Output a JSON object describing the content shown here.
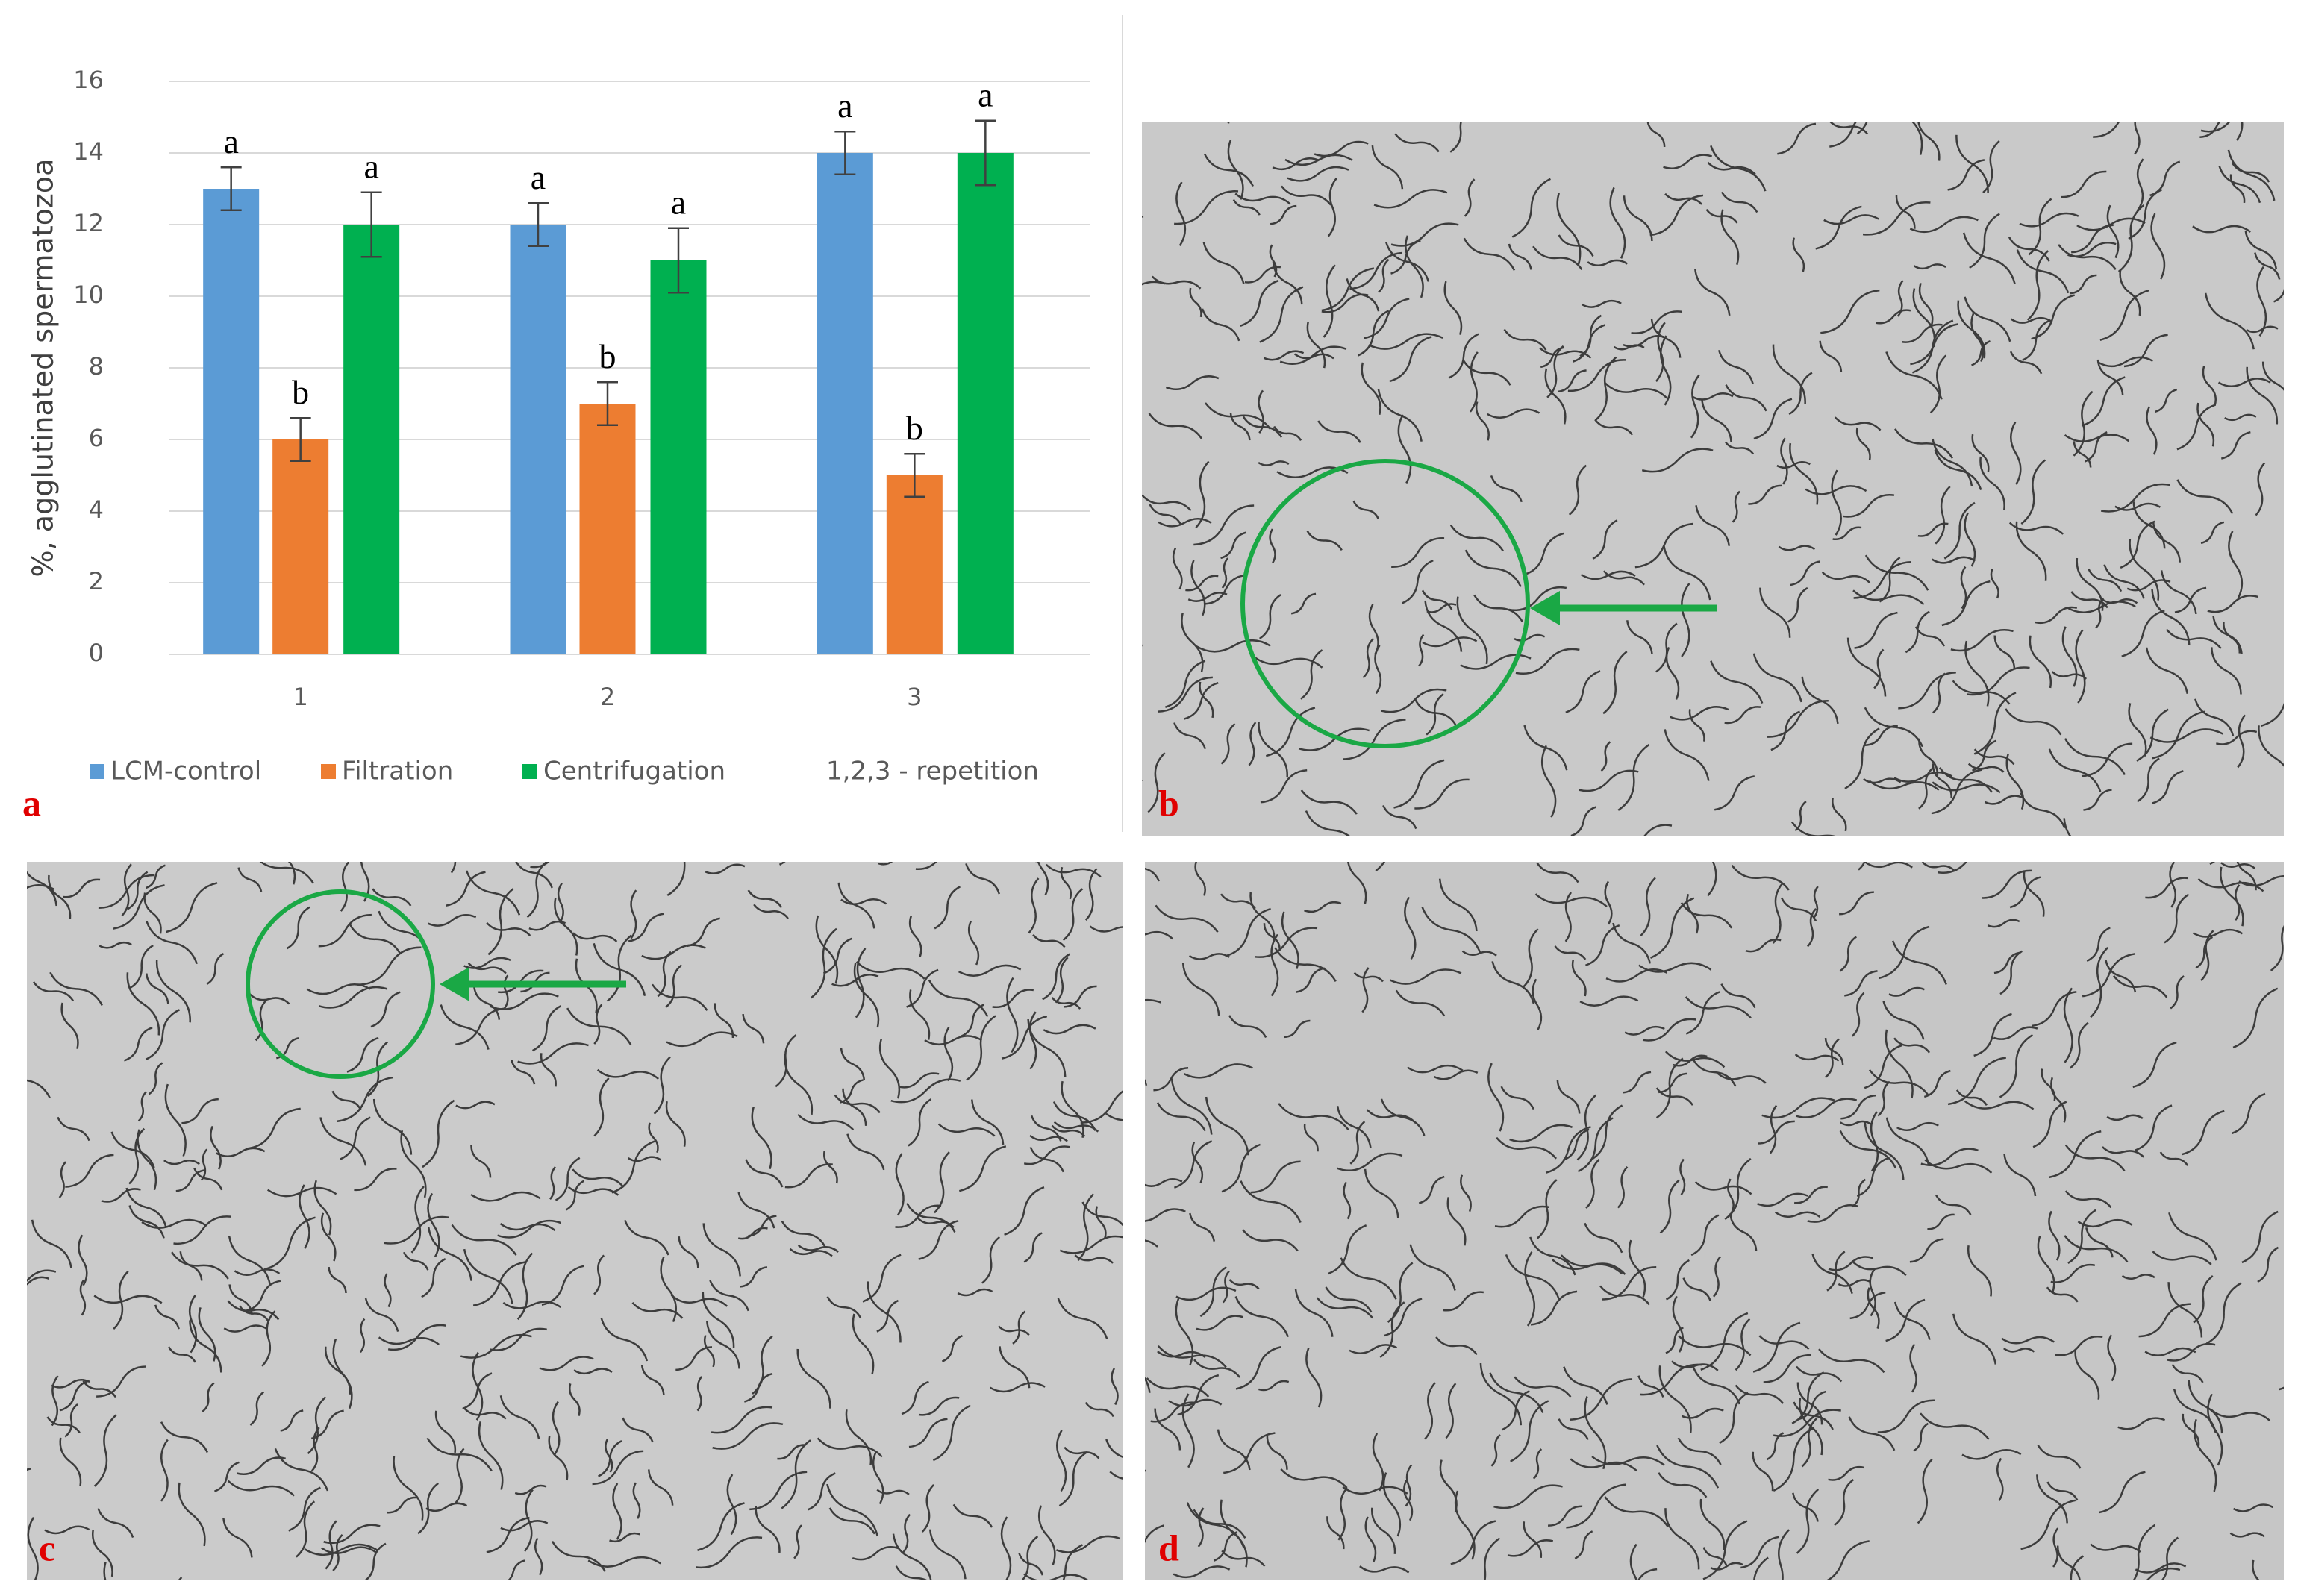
{
  "chart_data": {
    "type": "bar",
    "y_label": "%, agglutinated spermatozoa",
    "categories": [
      "1",
      "2",
      "3"
    ],
    "series": [
      {
        "name": "LCM-control",
        "color": "#5b9bd5",
        "values": [
          13,
          12,
          14
        ],
        "errors": [
          0.6,
          0.6,
          0.6
        ],
        "letters": [
          "a",
          "a",
          "a"
        ]
      },
      {
        "name": "Filtration",
        "color": "#ed7d31",
        "values": [
          6,
          7,
          5
        ],
        "errors": [
          0.6,
          0.6,
          0.6
        ],
        "letters": [
          "b",
          "b",
          "b"
        ]
      },
      {
        "name": "Centrifugation",
        "color": "#00b050",
        "values": [
          12,
          11,
          14
        ],
        "errors": [
          0.9,
          0.9,
          0.9
        ],
        "letters": [
          "a",
          "a",
          "a"
        ]
      }
    ],
    "legend_note": "1,2,3 - repetition",
    "ylim": [
      0,
      16
    ],
    "yticks": [
      0,
      2,
      4,
      6,
      8,
      10,
      12,
      14,
      16
    ],
    "grid": true
  },
  "panel_labels": [
    "a",
    "b",
    "c",
    "d"
  ]
}
